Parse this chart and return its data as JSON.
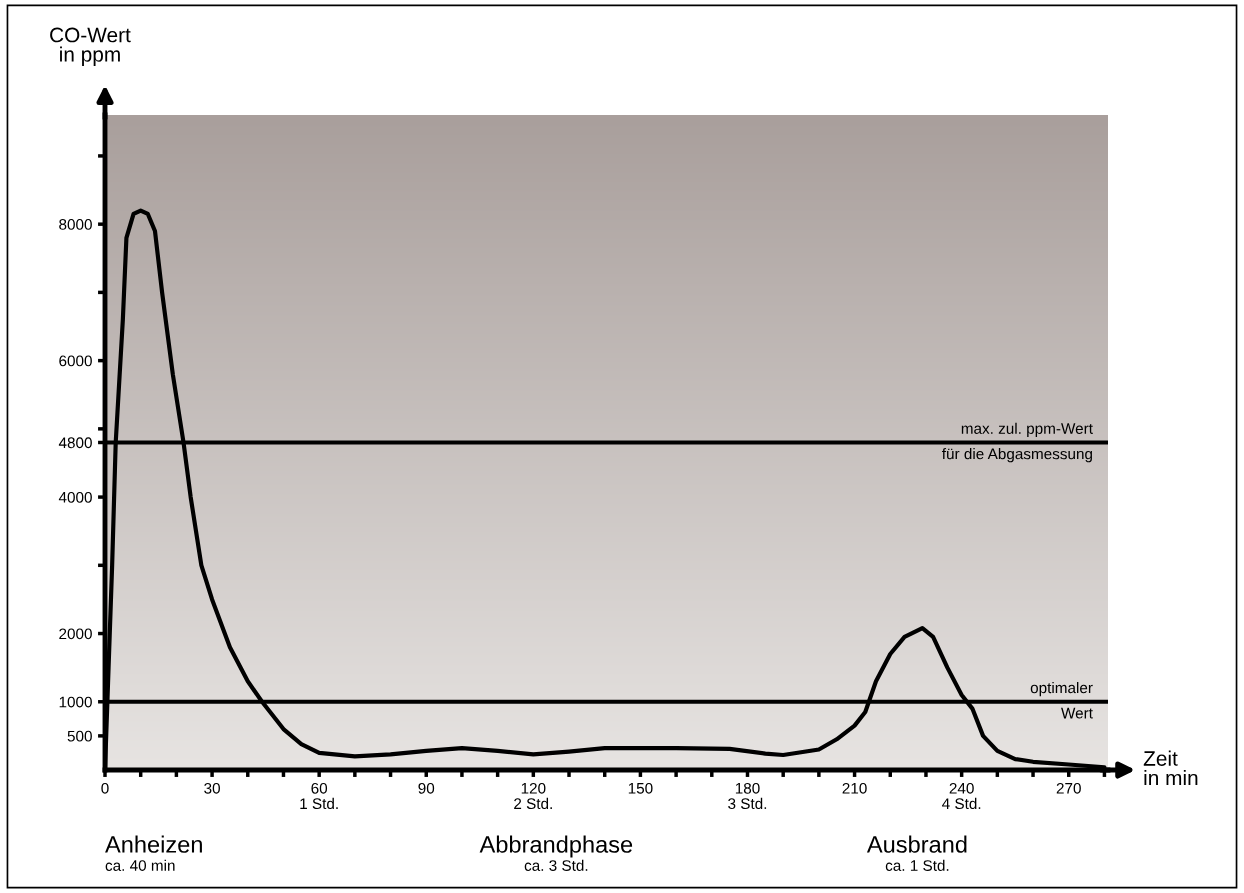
{
  "chart_data": {
    "type": "line",
    "xlabel": "Zeit\nin min",
    "ylabel": "CO-Wert\nin ppm",
    "x": [
      0,
      1,
      2,
      3,
      5,
      6,
      8,
      10,
      12,
      14,
      16,
      19,
      22,
      24,
      27,
      30,
      35,
      40,
      44,
      50,
      55,
      60,
      70,
      80,
      90,
      100,
      110,
      120,
      130,
      140,
      160,
      175,
      185,
      190,
      200,
      205,
      210,
      213,
      216,
      220,
      224,
      229,
      232,
      236,
      240,
      243,
      246,
      250,
      255,
      260,
      270,
      280
    ],
    "series": [
      {
        "color": "#000000",
        "values": [
          0,
          1500,
          3000,
          4800,
          6600,
          7800,
          8150,
          8200,
          8150,
          7900,
          7000,
          5800,
          4800,
          4000,
          3000,
          2500,
          1800,
          1300,
          1000,
          600,
          380,
          250,
          200,
          230,
          280,
          320,
          280,
          230,
          270,
          320,
          320,
          310,
          240,
          220,
          300,
          450,
          650,
          850,
          1300,
          1700,
          1950,
          2080,
          1950,
          1500,
          1100,
          900,
          500,
          280,
          160,
          120,
          80,
          40
        ]
      }
    ],
    "xlim": [
      0,
      281
    ],
    "ylim": [
      0,
      9600
    ],
    "xticks": [
      0,
      {
        "value": 10,
        "label": null
      },
      {
        "value": 20,
        "label": null
      },
      30,
      {
        "value": 40,
        "label": null
      },
      {
        "value": 50,
        "label": null
      },
      {
        "value": 60,
        "label": "60\n1 Std."
      },
      {
        "value": 70,
        "label": null
      },
      {
        "value": 80,
        "label": null
      },
      90,
      {
        "value": 100,
        "label": null
      },
      {
        "value": 110,
        "label": null
      },
      {
        "value": 120,
        "label": "120\n2 Std."
      },
      {
        "value": 130,
        "label": null
      },
      {
        "value": 140,
        "label": null
      },
      150,
      {
        "value": 160,
        "label": null
      },
      {
        "value": 170,
        "label": null
      },
      {
        "value": 180,
        "label": "180\n3 Std."
      },
      {
        "value": 190,
        "label": null
      },
      {
        "value": 200,
        "label": null
      },
      210,
      {
        "value": 220,
        "label": null
      },
      {
        "value": 230,
        "label": null
      },
      {
        "value": 240,
        "label": "240\n4 Std."
      },
      {
        "value": 250,
        "label": null
      },
      {
        "value": 260,
        "label": null
      },
      270,
      {
        "value": 280,
        "label": null
      }
    ],
    "yticks": [
      500,
      1000,
      2000,
      {
        "value": 3000,
        "label": null
      },
      4000,
      4800,
      {
        "value": 5000,
        "label": null
      },
      6000,
      {
        "value": 7000,
        "label": null
      },
      8000,
      {
        "value": 9000,
        "label": null
      }
    ],
    "ref_lines": [
      {
        "axis": "y",
        "value": 4800,
        "label": "max. zul. ppm-Wert\nfür die Abgasmessung",
        "color": "#000000"
      },
      {
        "axis": "y",
        "value": 1000,
        "label": "optimaler\nWert",
        "color": "#000000"
      }
    ],
    "annotations": [
      "Anheizen\nca. 40 min",
      "Abbrandphase\nca. 3 Std.",
      "Ausbrand\nca. 1 Std."
    ],
    "grid": false,
    "legend": false,
    "marker": "none",
    "line_style": "solid"
  }
}
